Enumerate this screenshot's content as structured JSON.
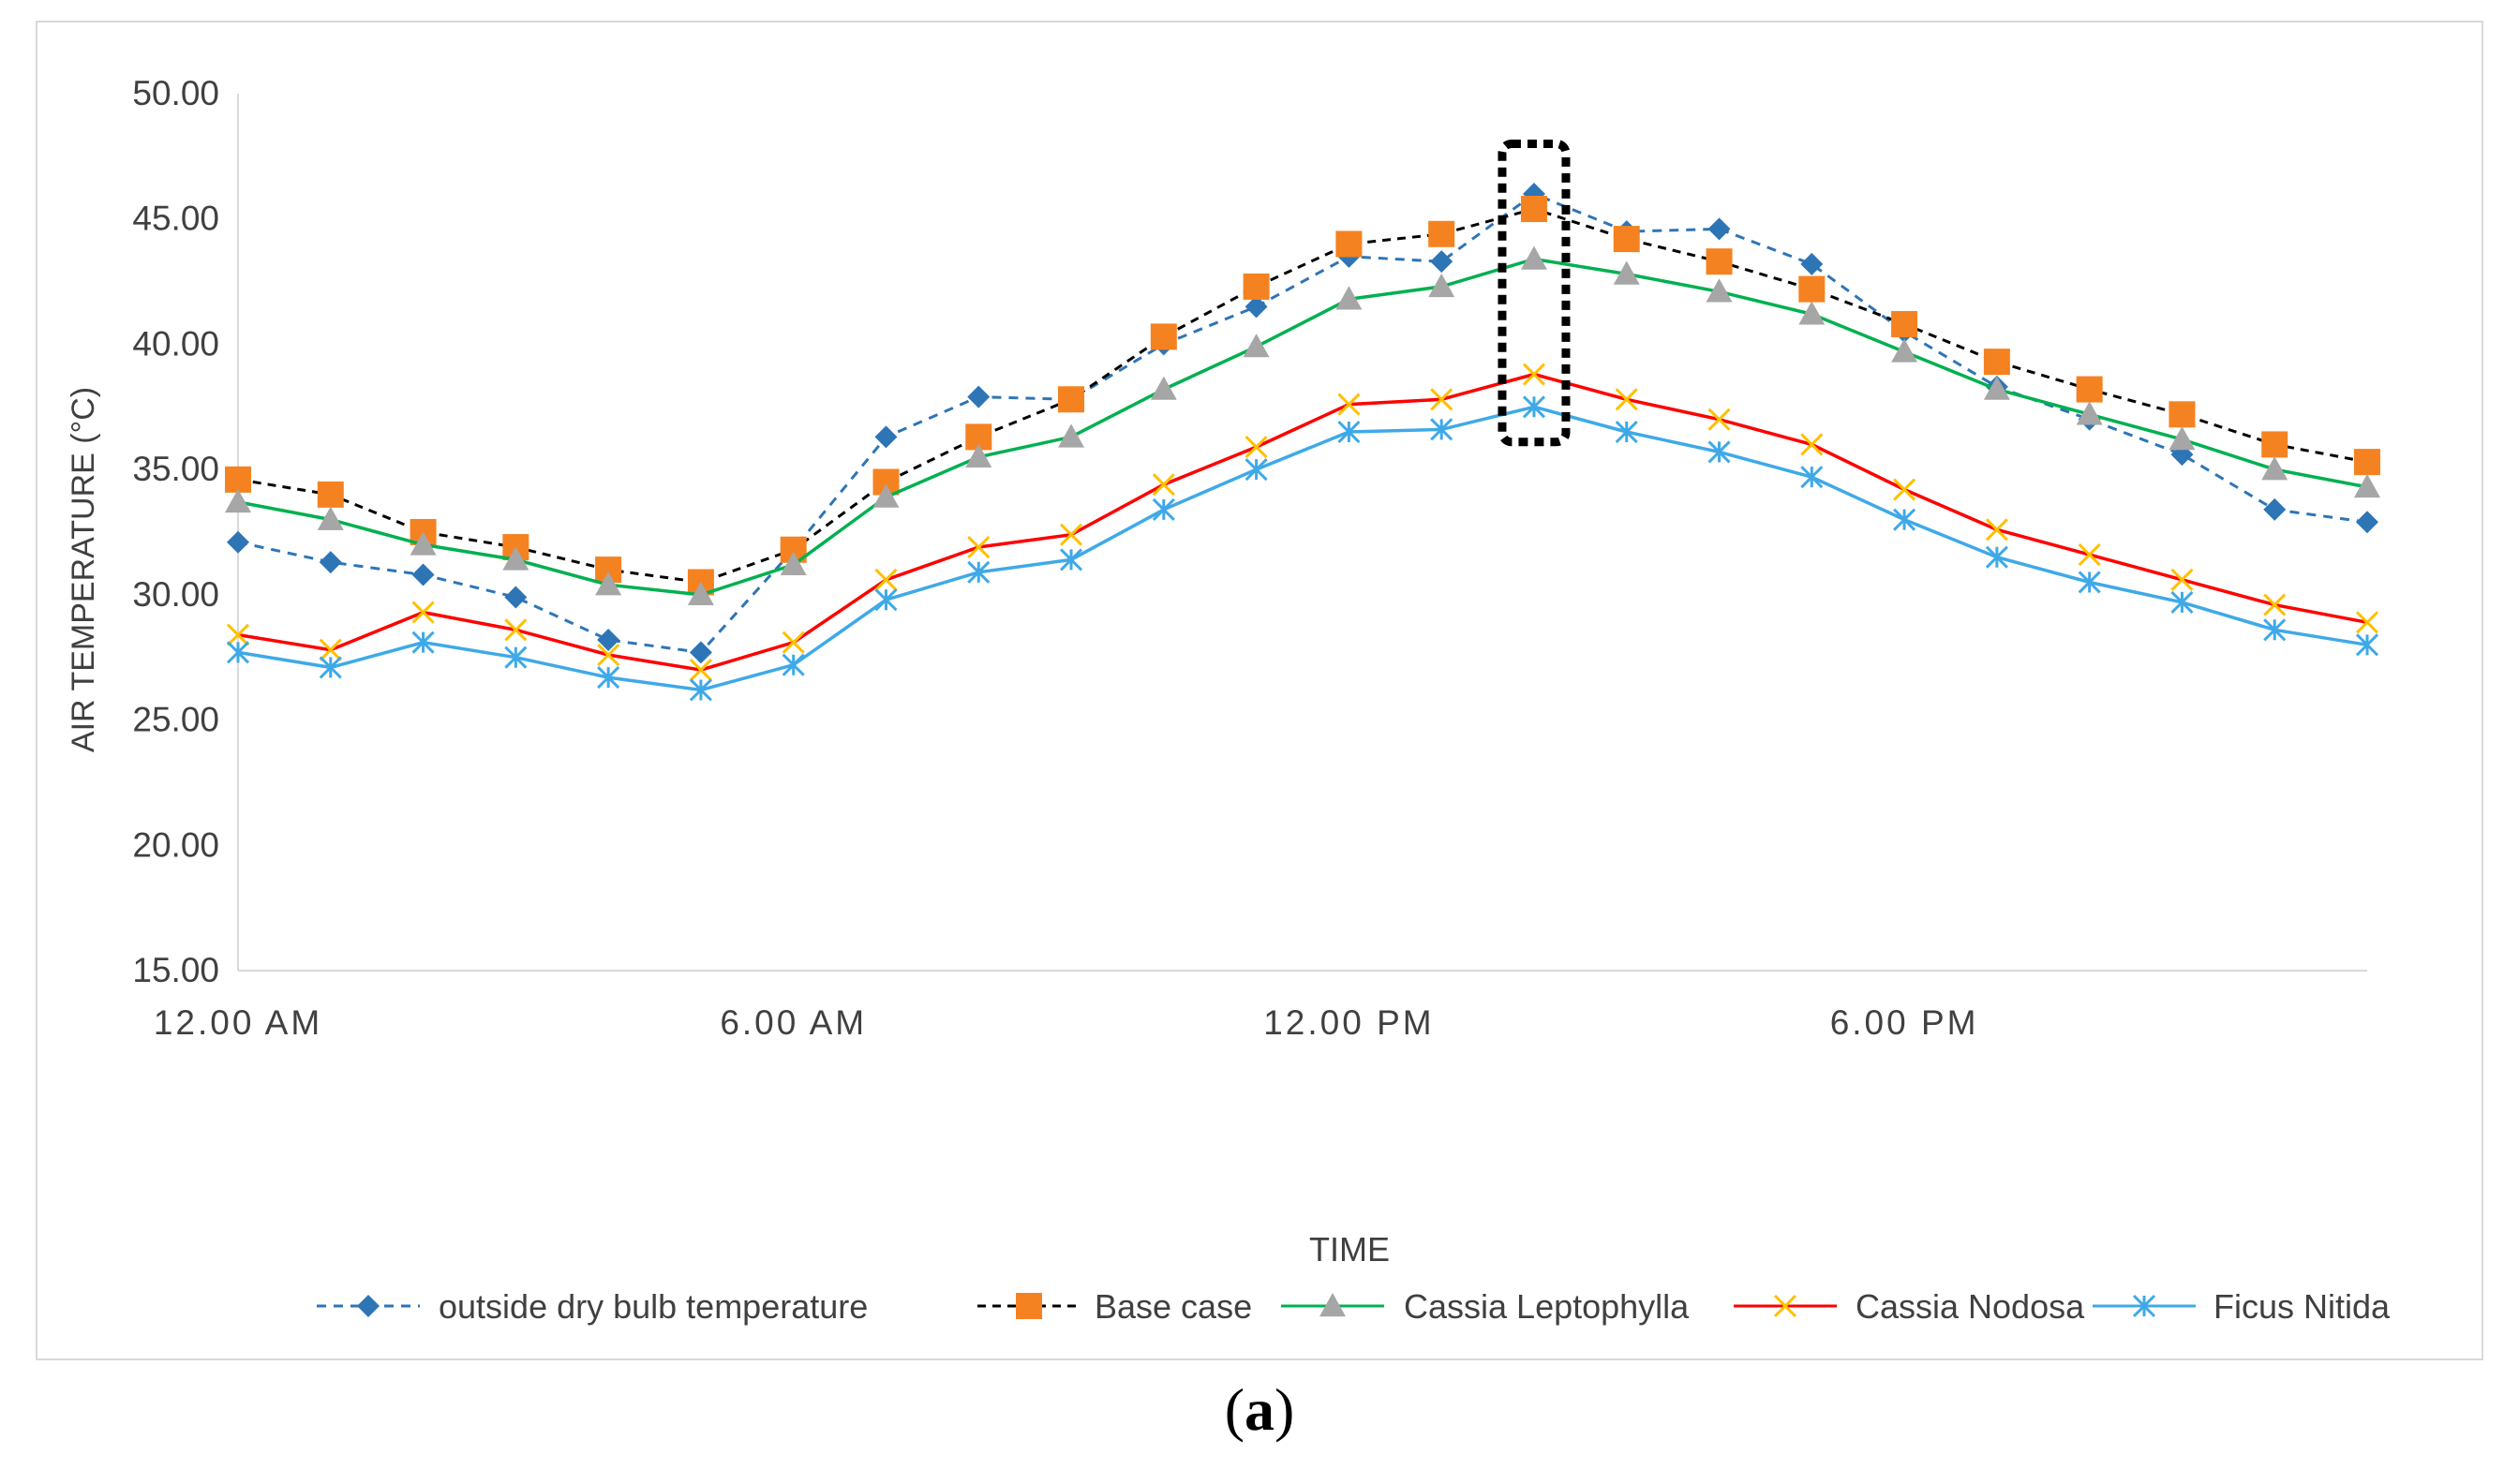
{
  "chart_data": {
    "type": "line",
    "title": "",
    "xlabel": "TIME",
    "ylabel": "AIR TEMPERATURE  (°C)",
    "ylim": [
      15,
      50
    ],
    "yticks": [
      "15.00",
      "20.00",
      "25.00",
      "30.00",
      "35.00",
      "40.00",
      "45.00",
      "50.00"
    ],
    "ytick_values": [
      15,
      20,
      25,
      30,
      35,
      40,
      45,
      50
    ],
    "x": [
      0,
      1,
      2,
      3,
      4,
      5,
      6,
      7,
      8,
      9,
      10,
      11,
      12,
      13,
      14,
      15,
      16,
      17,
      18,
      19,
      20,
      21,
      22,
      23
    ],
    "xticks": [
      {
        "x": 0,
        "label": "12.00 AM"
      },
      {
        "x": 6,
        "label": "6.00 AM"
      },
      {
        "x": 12,
        "label": "12.00 PM"
      },
      {
        "x": 18,
        "label": "6.00 PM"
      }
    ],
    "highlight": {
      "x": 14,
      "ymin": 36.1,
      "ymax": 48.0
    },
    "series": [
      {
        "name": "outside dry bulb temperature",
        "color": "#2E75B6",
        "dash": "10,8",
        "marker": "diamond",
        "values": [
          32.1,
          31.3,
          30.8,
          29.9,
          28.2,
          27.7,
          31.8,
          36.3,
          37.9,
          37.8,
          40.0,
          41.5,
          43.5,
          43.3,
          46.0,
          44.5,
          44.6,
          43.2,
          40.5,
          38.3,
          37.0,
          35.6,
          33.4,
          32.9
        ]
      },
      {
        "name": "Base case",
        "color": "#000000",
        "dash": "9,7",
        "marker": "square",
        "values": [
          34.6,
          34.0,
          32.5,
          31.9,
          31.0,
          30.5,
          31.8,
          34.5,
          36.3,
          37.8,
          40.3,
          42.3,
          44.0,
          44.4,
          45.4,
          44.2,
          43.3,
          42.2,
          40.8,
          39.3,
          38.2,
          37.2,
          36.0,
          35.3
        ]
      },
      {
        "name": "Cassia Leptophylla",
        "color": "#00B050",
        "dash": "",
        "marker": "triangle",
        "values": [
          33.7,
          33.0,
          32.0,
          31.4,
          30.4,
          30.0,
          31.2,
          33.9,
          35.5,
          36.3,
          38.2,
          39.9,
          41.8,
          42.3,
          43.4,
          42.8,
          42.1,
          41.2,
          39.7,
          38.2,
          37.2,
          36.2,
          35.0,
          34.3
        ]
      },
      {
        "name": "Cassia Nodosa",
        "color": "#FF0000",
        "dash": "",
        "marker": "x",
        "values": [
          28.4,
          27.8,
          29.3,
          28.6,
          27.6,
          27.0,
          28.1,
          30.6,
          31.9,
          32.4,
          34.4,
          35.9,
          37.6,
          37.8,
          38.8,
          37.8,
          37.0,
          36.0,
          34.2,
          32.6,
          31.6,
          30.6,
          29.6,
          28.9
        ]
      },
      {
        "name": "Ficus Nitida",
        "color": "#3FA9E8",
        "dash": "",
        "marker": "asterisk",
        "values": [
          27.7,
          27.1,
          28.1,
          27.5,
          26.7,
          26.2,
          27.2,
          29.8,
          30.9,
          31.4,
          33.4,
          35.0,
          36.5,
          36.6,
          37.5,
          36.5,
          35.7,
          34.7,
          33.0,
          31.5,
          30.5,
          29.7,
          28.6,
          28.0
        ]
      }
    ],
    "marker_colors": {
      "diamond": "#2E75B6",
      "square": "#F58220",
      "triangle": "#A6A6A6",
      "x": "#FFC000",
      "asterisk": "#3FA9E8"
    },
    "grid": false,
    "legend": "bottom"
  },
  "caption": {
    "open": "(",
    "letter": "a",
    "close": ")"
  }
}
